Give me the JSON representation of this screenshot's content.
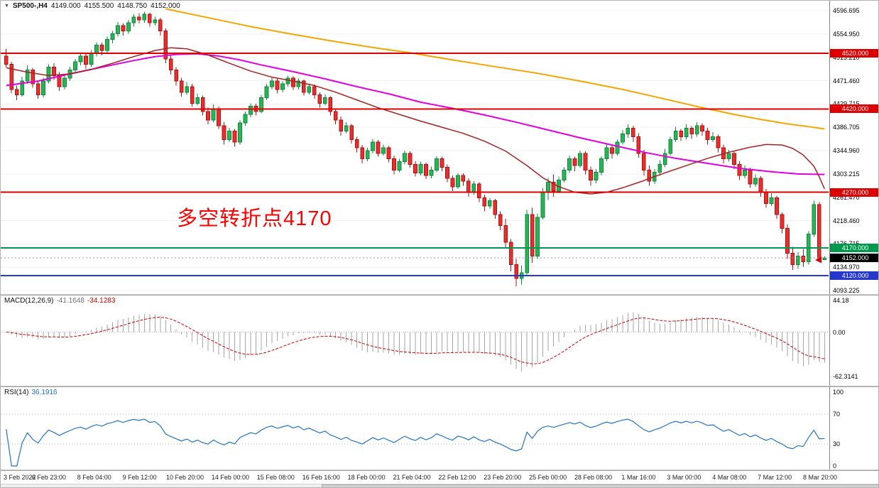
{
  "header": {
    "symbol": "SP500-,H4",
    "open": "4149.000",
    "high": "4155.500",
    "low": "4148.750",
    "close": "4152.000"
  },
  "annotation": {
    "text": "多空转折点4170",
    "color": "#FF0000"
  },
  "colors": {
    "up": "#2BB356",
    "up_border": "#0F8A3C",
    "down": "#E63030",
    "down_border": "#B01212",
    "macd_hist": "#A6A6A6",
    "macd_signal": "#D40000",
    "rsi_line": "#2272C8",
    "grid": "#F2F2F2",
    "level_red": "#DD0000",
    "level_green": "#009A4E",
    "level_blue": "#2438CC",
    "current_black": "#000000"
  },
  "indicators": {
    "macd": {
      "name": "MACD(12,26,9)",
      "value": "-41.1648",
      "signal_value": "-34.1283",
      "axis_values": [
        44.18,
        0,
        -62.3141
      ],
      "axis_labels": [
        "44.18",
        "0.00",
        "-62.3141"
      ]
    },
    "rsi": {
      "name": "RSI(14)",
      "value": "36.1916",
      "axis_values": [
        100,
        70,
        30,
        0
      ],
      "axis_labels": [
        "100",
        "70",
        "30",
        "0"
      ],
      "levels": [
        70,
        30
      ]
    }
  },
  "chart_data": {
    "type": "candlestick",
    "symbol": "SP500-",
    "timeframe": "H4",
    "y_axis": {
      "top": 4596.695,
      "bottom": 4093.225,
      "labels": [
        "4596.695",
        "4554.950",
        "4513.210",
        "4471.460",
        "4429.715",
        "4386.705",
        "4344.960",
        "4303.215",
        "4261.470",
        "4218.460",
        "4176.715",
        "4134.970",
        "4093.225"
      ]
    },
    "x_axis": {
      "labels": [
        "3 Feb 2022",
        "6 Feb 23:00",
        "8 Feb 04:00",
        "9 Feb 12:00",
        "10 Feb 20:00",
        "14 Feb 00:00",
        "15 Feb 08:00",
        "16 Feb 16:00",
        "18 Feb 00:00",
        "21 Feb 04:00",
        "22 Feb 12:00",
        "23 Feb 20:00",
        "25 Feb 00:00",
        "28 Feb 08:00",
        "1 Mar 16:00",
        "3 Mar 00:00",
        "4 Mar 08:00",
        "7 Mar 12:00",
        "8 Mar 20:00"
      ]
    },
    "levels": [
      {
        "price": 4520,
        "label": "4520.000",
        "color": "#DD0000",
        "width": 2
      },
      {
        "price": 4420,
        "label": "4420.000",
        "color": "#DD0000",
        "width": 2
      },
      {
        "price": 4270,
        "label": "4270.000",
        "color": "#DD0000",
        "width": 2
      },
      {
        "price": 4170,
        "label": "4170.000",
        "color": "#009A4E",
        "width": 2
      },
      {
        "price": 4120,
        "label": "4120.000",
        "color": "#2438CC",
        "width": 2
      },
      {
        "price": 4152,
        "label": "4152.000",
        "color": "#000000",
        "width": 1,
        "current": true
      }
    ],
    "overlays": [
      {
        "name": "ma-slow",
        "color": "#F7A400",
        "width": 2,
        "points": [
          [
            30,
            4600
          ],
          [
            38,
            4584
          ],
          [
            46,
            4568
          ],
          [
            54,
            4554
          ],
          [
            62,
            4541
          ],
          [
            70,
            4529
          ],
          [
            76,
            4521
          ],
          [
            84,
            4508
          ],
          [
            92,
            4496
          ],
          [
            100,
            4484
          ],
          [
            108,
            4470
          ],
          [
            116,
            4455
          ],
          [
            122,
            4442
          ],
          [
            127,
            4431
          ],
          [
            132,
            4420
          ],
          [
            137,
            4410
          ],
          [
            142,
            4401
          ],
          [
            147,
            4393
          ],
          [
            151,
            4388
          ],
          [
            154,
            4384
          ]
        ]
      },
      {
        "name": "ma-mid",
        "color": "#E000E0",
        "width": 2,
        "points": [
          [
            0,
            4462
          ],
          [
            6,
            4470
          ],
          [
            12,
            4483
          ],
          [
            18,
            4495
          ],
          [
            24,
            4507
          ],
          [
            28,
            4514
          ],
          [
            32,
            4518
          ],
          [
            36,
            4519
          ],
          [
            40,
            4515
          ],
          [
            44,
            4508
          ],
          [
            48,
            4499
          ],
          [
            54,
            4487
          ],
          [
            60,
            4474
          ],
          [
            66,
            4460
          ],
          [
            72,
            4447
          ],
          [
            78,
            4432
          ],
          [
            84,
            4421
          ],
          [
            90,
            4409
          ],
          [
            96,
            4396
          ],
          [
            102,
            4382
          ],
          [
            108,
            4368
          ],
          [
            114,
            4355
          ],
          [
            120,
            4342
          ],
          [
            126,
            4331
          ],
          [
            132,
            4322
          ],
          [
            138,
            4313
          ],
          [
            144,
            4307
          ],
          [
            149,
            4303
          ],
          [
            154,
            4302
          ]
        ]
      },
      {
        "name": "ma-fast",
        "color": "#A62121",
        "width": 1.5,
        "points": [
          [
            0,
            4494
          ],
          [
            4,
            4486
          ],
          [
            8,
            4480
          ],
          [
            12,
            4483
          ],
          [
            16,
            4491
          ],
          [
            20,
            4502
          ],
          [
            24,
            4514
          ],
          [
            28,
            4525
          ],
          [
            31,
            4530
          ],
          [
            34,
            4528
          ],
          [
            38,
            4517
          ],
          [
            42,
            4502
          ],
          [
            46,
            4488
          ],
          [
            50,
            4477
          ],
          [
            54,
            4470
          ],
          [
            58,
            4462
          ],
          [
            62,
            4450
          ],
          [
            66,
            4436
          ],
          [
            70,
            4422
          ],
          [
            74,
            4410
          ],
          [
            78,
            4398
          ],
          [
            82,
            4387
          ],
          [
            86,
            4376
          ],
          [
            90,
            4362
          ],
          [
            94,
            4344
          ],
          [
            98,
            4318
          ],
          [
            101,
            4296
          ],
          [
            104,
            4280
          ],
          [
            107,
            4270
          ],
          [
            110,
            4267
          ],
          [
            113,
            4270
          ],
          [
            116,
            4278
          ],
          [
            120,
            4291
          ],
          [
            124,
            4305
          ],
          [
            128,
            4318
          ],
          [
            132,
            4331
          ],
          [
            136,
            4342
          ],
          [
            140,
            4351
          ],
          [
            143,
            4356
          ],
          [
            146,
            4355
          ],
          [
            148,
            4349
          ],
          [
            150,
            4337
          ],
          [
            152,
            4317
          ],
          [
            153,
            4298
          ],
          [
            154,
            4276
          ]
        ]
      }
    ],
    "candles": [
      [
        4515,
        4528,
        4495,
        4500
      ],
      [
        4500,
        4505,
        4448,
        4455
      ],
      [
        4455,
        4462,
        4436,
        4445
      ],
      [
        4445,
        4478,
        4442,
        4470
      ],
      [
        4470,
        4498,
        4465,
        4490
      ],
      [
        4490,
        4494,
        4458,
        4465
      ],
      [
        4465,
        4470,
        4438,
        4445
      ],
      [
        4445,
        4476,
        4440,
        4470
      ],
      [
        4470,
        4500,
        4466,
        4495
      ],
      [
        4495,
        4502,
        4472,
        4480
      ],
      [
        4480,
        4486,
        4452,
        4460
      ],
      [
        4460,
        4480,
        4455,
        4475
      ],
      [
        4475,
        4496,
        4470,
        4490
      ],
      [
        4490,
        4510,
        4485,
        4505
      ],
      [
        4505,
        4520,
        4498,
        4515
      ],
      [
        4515,
        4519,
        4492,
        4500
      ],
      [
        4500,
        4526,
        4496,
        4520
      ],
      [
        4520,
        4540,
        4514,
        4535
      ],
      [
        4535,
        4539,
        4516,
        4525
      ],
      [
        4525,
        4550,
        4520,
        4545
      ],
      [
        4545,
        4560,
        4538,
        4555
      ],
      [
        4555,
        4576,
        4550,
        4570
      ],
      [
        4570,
        4574,
        4552,
        4560
      ],
      [
        4560,
        4580,
        4555,
        4575
      ],
      [
        4575,
        4590,
        4568,
        4585
      ],
      [
        4585,
        4592,
        4574,
        4580
      ],
      [
        4580,
        4595,
        4575,
        4590
      ],
      [
        4590,
        4593,
        4568,
        4575
      ],
      [
        4575,
        4586,
        4570,
        4580
      ],
      [
        4580,
        4584,
        4552,
        4560
      ],
      [
        4560,
        4565,
        4502,
        4510
      ],
      [
        4510,
        4518,
        4482,
        4490
      ],
      [
        4490,
        4495,
        4462,
        4470
      ],
      [
        4470,
        4476,
        4442,
        4450
      ],
      [
        4450,
        4468,
        4445,
        4460
      ],
      [
        4460,
        4465,
        4424,
        4430
      ],
      [
        4430,
        4448,
        4426,
        4440
      ],
      [
        4440,
        4444,
        4408,
        4415
      ],
      [
        4415,
        4422,
        4392,
        4400
      ],
      [
        4400,
        4428,
        4396,
        4420
      ],
      [
        4420,
        4424,
        4384,
        4390
      ],
      [
        4390,
        4396,
        4356,
        4365
      ],
      [
        4365,
        4386,
        4360,
        4380
      ],
      [
        4380,
        4384,
        4352,
        4360
      ],
      [
        4360,
        4400,
        4356,
        4395
      ],
      [
        4395,
        4415,
        4390,
        4410
      ],
      [
        4410,
        4430,
        4405,
        4425
      ],
      [
        4425,
        4429,
        4408,
        4415
      ],
      [
        4415,
        4445,
        4412,
        4440
      ],
      [
        4440,
        4465,
        4436,
        4460
      ],
      [
        4460,
        4476,
        4455,
        4470
      ],
      [
        4470,
        4474,
        4448,
        4455
      ],
      [
        4455,
        4470,
        4450,
        4465
      ],
      [
        4465,
        4480,
        4460,
        4475
      ],
      [
        4475,
        4479,
        4454,
        4460
      ],
      [
        4460,
        4475,
        4455,
        4470
      ],
      [
        4470,
        4473,
        4444,
        4450
      ],
      [
        4450,
        4466,
        4446,
        4460
      ],
      [
        4460,
        4464,
        4438,
        4445
      ],
      [
        4445,
        4450,
        4422,
        4430
      ],
      [
        4430,
        4446,
        4426,
        4440
      ],
      [
        4440,
        4443,
        4408,
        4415
      ],
      [
        4415,
        4420,
        4392,
        4400
      ],
      [
        4400,
        4406,
        4372,
        4380
      ],
      [
        4380,
        4396,
        4376,
        4390
      ],
      [
        4390,
        4393,
        4358,
        4365
      ],
      [
        4365,
        4370,
        4342,
        4350
      ],
      [
        4350,
        4355,
        4322,
        4330
      ],
      [
        4330,
        4350,
        4326,
        4345
      ],
      [
        4345,
        4366,
        4340,
        4360
      ],
      [
        4360,
        4364,
        4334,
        4340
      ],
      [
        4340,
        4356,
        4336,
        4350
      ],
      [
        4350,
        4353,
        4324,
        4330
      ],
      [
        4330,
        4336,
        4302,
        4310
      ],
      [
        4310,
        4330,
        4306,
        4325
      ],
      [
        4325,
        4345,
        4320,
        4340
      ],
      [
        4340,
        4344,
        4314,
        4320
      ],
      [
        4320,
        4326,
        4298,
        4305
      ],
      [
        4305,
        4325,
        4300,
        4320
      ],
      [
        4320,
        4323,
        4294,
        4300
      ],
      [
        4300,
        4316,
        4295,
        4310
      ],
      [
        4310,
        4335,
        4306,
        4330
      ],
      [
        4330,
        4334,
        4308,
        4315
      ],
      [
        4315,
        4320,
        4288,
        4295
      ],
      [
        4295,
        4300,
        4272,
        4280
      ],
      [
        4280,
        4305,
        4276,
        4300
      ],
      [
        4300,
        4304,
        4282,
        4290
      ],
      [
        4290,
        4295,
        4262,
        4270
      ],
      [
        4270,
        4290,
        4265,
        4285
      ],
      [
        4285,
        4288,
        4252,
        4260
      ],
      [
        4260,
        4266,
        4236,
        4245
      ],
      [
        4245,
        4260,
        4240,
        4255
      ],
      [
        4255,
        4258,
        4222,
        4230
      ],
      [
        4230,
        4236,
        4202,
        4210
      ],
      [
        4210,
        4222,
        4170,
        4180
      ],
      [
        4180,
        4186,
        4128,
        4140
      ],
      [
        4140,
        4150,
        4101,
        4115
      ],
      [
        4115,
        4138,
        4104,
        4125
      ],
      [
        4125,
        4238,
        4120,
        4230
      ],
      [
        4230,
        4242,
        4143,
        4155
      ],
      [
        4155,
        4232,
        4150,
        4225
      ],
      [
        4225,
        4278,
        4221,
        4270
      ],
      [
        4270,
        4296,
        4256,
        4288
      ],
      [
        4288,
        4302,
        4262,
        4272
      ],
      [
        4272,
        4298,
        4268,
        4292
      ],
      [
        4292,
        4315,
        4288,
        4310
      ],
      [
        4310,
        4336,
        4305,
        4330
      ],
      [
        4330,
        4334,
        4308,
        4318
      ],
      [
        4318,
        4345,
        4314,
        4340
      ],
      [
        4340,
        4344,
        4302,
        4310
      ],
      [
        4310,
        4316,
        4282,
        4292
      ],
      [
        4292,
        4312,
        4286,
        4306
      ],
      [
        4306,
        4335,
        4300,
        4330
      ],
      [
        4330,
        4356,
        4326,
        4350
      ],
      [
        4350,
        4354,
        4330,
        4340
      ],
      [
        4340,
        4365,
        4336,
        4360
      ],
      [
        4360,
        4382,
        4356,
        4375
      ],
      [
        4375,
        4392,
        4368,
        4385
      ],
      [
        4385,
        4390,
        4360,
        4370
      ],
      [
        4370,
        4376,
        4332,
        4340
      ],
      [
        4340,
        4346,
        4300,
        4310
      ],
      [
        4310,
        4318,
        4282,
        4290
      ],
      [
        4290,
        4312,
        4285,
        4306
      ],
      [
        4306,
        4328,
        4300,
        4320
      ],
      [
        4320,
        4348,
        4315,
        4340
      ],
      [
        4340,
        4370,
        4336,
        4365
      ],
      [
        4365,
        4388,
        4360,
        4380
      ],
      [
        4380,
        4384,
        4362,
        4370
      ],
      [
        4370,
        4392,
        4365,
        4385
      ],
      [
        4385,
        4389,
        4366,
        4375
      ],
      [
        4375,
        4396,
        4370,
        4390
      ],
      [
        4390,
        4394,
        4372,
        4380
      ],
      [
        4380,
        4386,
        4356,
        4365
      ],
      [
        4365,
        4378,
        4360,
        4370
      ],
      [
        4370,
        4374,
        4342,
        4350
      ],
      [
        4350,
        4356,
        4322,
        4330
      ],
      [
        4330,
        4346,
        4325,
        4340
      ],
      [
        4340,
        4344,
        4312,
        4320
      ],
      [
        4320,
        4326,
        4292,
        4300
      ],
      [
        4300,
        4318,
        4295,
        4310
      ],
      [
        4310,
        4314,
        4278,
        4285
      ],
      [
        4285,
        4302,
        4280,
        4295
      ],
      [
        4295,
        4299,
        4262,
        4270
      ],
      [
        4270,
        4276,
        4242,
        4250
      ],
      [
        4250,
        4268,
        4245,
        4260
      ],
      [
        4260,
        4264,
        4222,
        4230
      ],
      [
        4230,
        4234,
        4196,
        4205
      ],
      [
        4205,
        4212,
        4150,
        4160
      ],
      [
        4160,
        4172,
        4130,
        4140
      ],
      [
        4140,
        4162,
        4132,
        4155
      ],
      [
        4155,
        4168,
        4136,
        4145
      ],
      [
        4145,
        4200,
        4140,
        4195
      ],
      [
        4195,
        4255,
        4190,
        4248
      ],
      [
        4248,
        4252,
        4146,
        4150
      ],
      [
        4149,
        4155.5,
        4148.75,
        4152
      ]
    ]
  }
}
